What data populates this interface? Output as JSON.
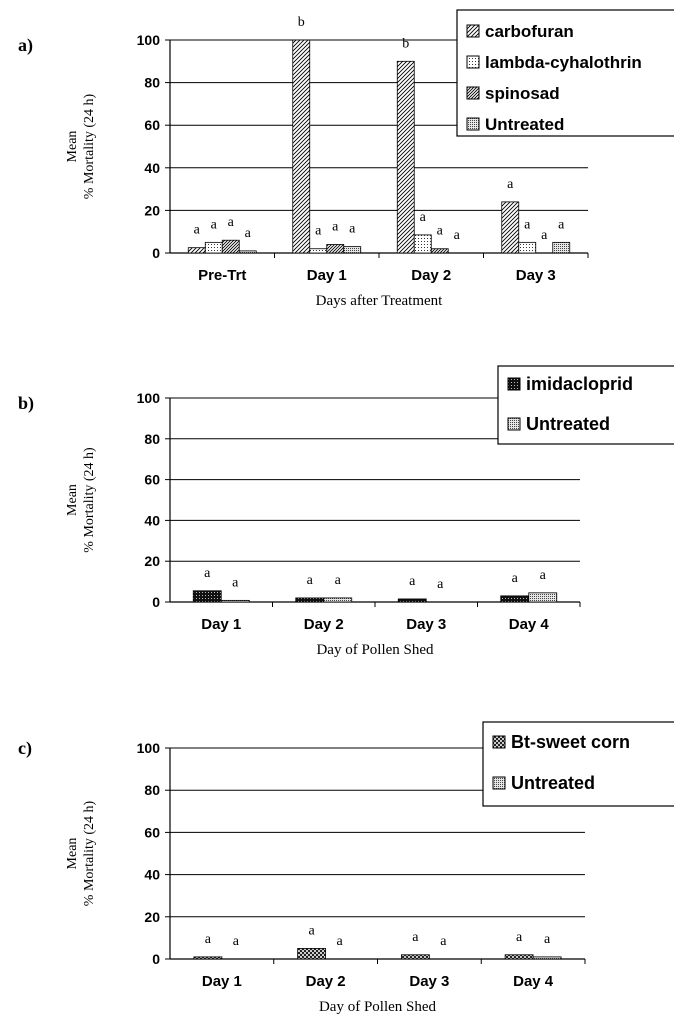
{
  "chart_data": [
    {
      "type": "bar",
      "panel_label": "a)",
      "title": "",
      "xlabel": "Days after Treatment",
      "ylabel": [
        "Mean",
        "% Mortality (24 h)"
      ],
      "ylim": [
        0,
        100
      ],
      "yticks": [
        0,
        20,
        40,
        60,
        80,
        100
      ],
      "grid": true,
      "legend_position": "top-right",
      "categories": [
        "Pre-Trt",
        "Day 1",
        "Day 2",
        "Day 3"
      ],
      "series": [
        {
          "name": "carbofuran",
          "pattern": "diagonal",
          "values": [
            2.5,
            100,
            90,
            24
          ],
          "labels": [
            "a",
            "b",
            "b",
            "a"
          ]
        },
        {
          "name": "lambda-cyhalothrin",
          "pattern": "dots",
          "values": [
            5,
            2,
            8.5,
            5
          ],
          "labels": [
            "a",
            "a",
            "a",
            "a"
          ]
        },
        {
          "name": "spinosad",
          "pattern": "diagonal-dense",
          "values": [
            6,
            4,
            2,
            0
          ],
          "labels": [
            "a",
            "a",
            "a",
            "a"
          ]
        },
        {
          "name": "Untreated",
          "pattern": "dots-dense",
          "values": [
            1,
            3,
            0,
            5
          ],
          "labels": [
            "a",
            "a",
            "a",
            "a"
          ]
        }
      ]
    },
    {
      "type": "bar",
      "panel_label": "b)",
      "title": "",
      "xlabel": "Day of Pollen Shed",
      "ylabel": [
        "Mean",
        "% Mortality (24 h)"
      ],
      "ylim": [
        0,
        100
      ],
      "yticks": [
        0,
        20,
        40,
        60,
        80,
        100
      ],
      "grid": true,
      "legend_position": "top-right",
      "categories": [
        "Day 1",
        "Day 2",
        "Day 3",
        "Day 4"
      ],
      "series": [
        {
          "name": "imidacloprid",
          "pattern": "grid-dark",
          "values": [
            5.5,
            2,
            1.5,
            3
          ],
          "labels": [
            "a",
            "a",
            "a",
            "a"
          ]
        },
        {
          "name": "Untreated",
          "pattern": "dots-dense",
          "values": [
            0.8,
            2,
            0,
            4.5
          ],
          "labels": [
            "a",
            "a",
            "a",
            "a"
          ]
        }
      ]
    },
    {
      "type": "bar",
      "panel_label": "c)",
      "title": "",
      "xlabel": "Day of Pollen Shed",
      "ylabel": [
        "Mean",
        "% Mortality (24 h)"
      ],
      "ylim": [
        0,
        100
      ],
      "yticks": [
        0,
        20,
        40,
        60,
        80,
        100
      ],
      "grid": true,
      "legend_position": "top-right",
      "categories": [
        "Day 1",
        "Day 2",
        "Day 3",
        "Day 4"
      ],
      "series": [
        {
          "name": "Bt-sweet corn",
          "pattern": "checker",
          "values": [
            1,
            5,
            2,
            2
          ],
          "labels": [
            "a",
            "a",
            "a",
            "a"
          ]
        },
        {
          "name": "Untreated",
          "pattern": "dots-dense",
          "values": [
            0,
            0,
            0,
            1
          ],
          "labels": [
            "a",
            "a",
            "a",
            "a"
          ]
        }
      ]
    }
  ]
}
